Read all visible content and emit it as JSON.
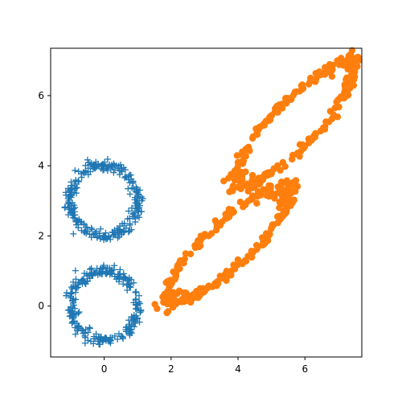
{
  "chart_data": {
    "type": "scatter",
    "title": "",
    "xlabel": "",
    "ylabel": "",
    "xlim": [
      -1.6,
      7.7
    ],
    "ylim": [
      -1.45,
      7.35
    ],
    "xticks": [
      0,
      2,
      4,
      6
    ],
    "yticks": [
      0,
      2,
      4,
      6
    ],
    "xtick_labels": [
      "0",
      "2",
      "4",
      "6"
    ],
    "ytick_labels": [
      "0",
      "2",
      "4",
      "6"
    ],
    "grid": false,
    "series": [
      {
        "marker": "plus",
        "color": "#1f77b4",
        "description_shape": "figure-eight: two stacked rings",
        "rings": [
          {
            "center": [
              0,
              3
            ],
            "radius": 1
          },
          {
            "center": [
              0,
              0
            ],
            "radius": 1
          }
        ],
        "points_per_ring": 260,
        "noise": 0.08
      },
      {
        "marker": "circle",
        "color": "#ff7f0e",
        "description_shape": "sheared figure-eight: two elongated loops",
        "rings": [
          {
            "center": [
              3.7,
              1.75
            ],
            "radius": 1,
            "shear": [
              2,
              2,
              1.75,
              1.75
            ]
          },
          {
            "center": [
              5.7,
              5.2
            ],
            "radius": 1,
            "shear": [
              1.75,
              1.75,
              1.75,
              1.75
            ]
          }
        ],
        "points_per_ring": 260,
        "noise": 0.08
      }
    ]
  }
}
